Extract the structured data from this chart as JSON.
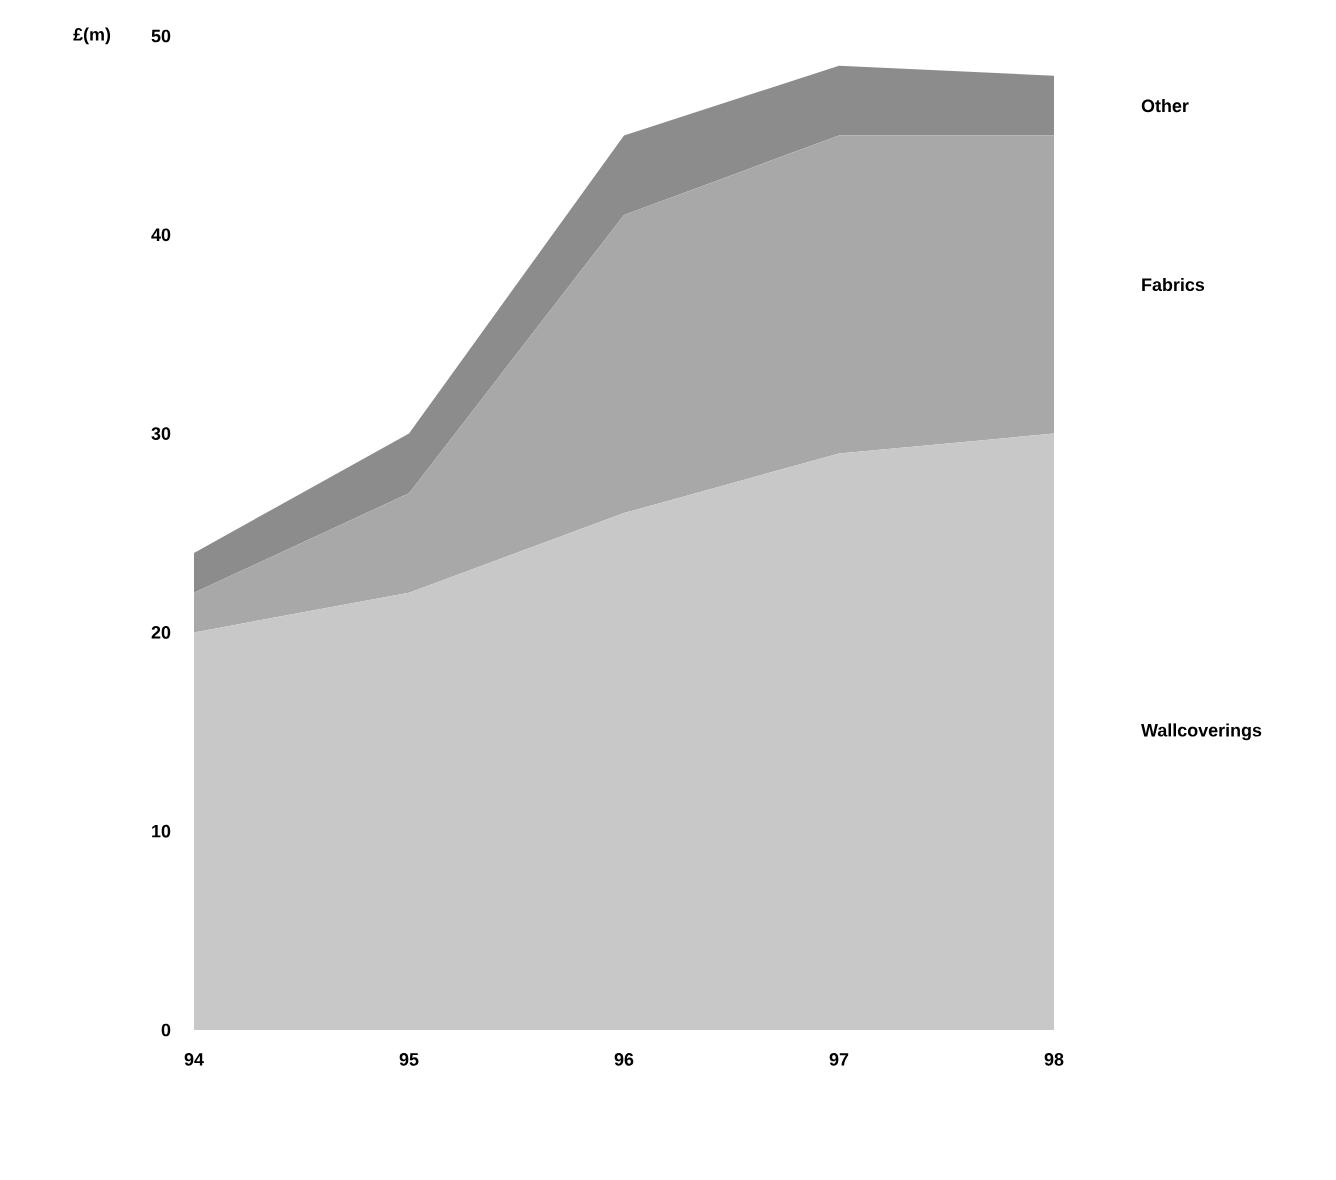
{
  "chart_data": {
    "type": "area",
    "stacked": true,
    "ylabel": "£(m)",
    "x": [
      94,
      95,
      96,
      97,
      98
    ],
    "series": [
      {
        "name": "Wallcoverings",
        "color": "#c8c8c8",
        "values": [
          20,
          22,
          26,
          29,
          30
        ]
      },
      {
        "name": "Fabrics",
        "color": "#a8a8a8",
        "values": [
          2,
          5,
          15,
          16,
          15
        ]
      },
      {
        "name": "Other",
        "color": "#8c8c8c",
        "values": [
          2,
          3,
          4,
          3.5,
          3
        ]
      }
    ],
    "xlim": [
      94,
      98
    ],
    "ylim": [
      0,
      50
    ],
    "xticks": [
      94,
      95,
      96,
      97,
      98
    ],
    "yticks": [
      0,
      10,
      20,
      30,
      40,
      50
    ],
    "grid": false,
    "legend": false
  }
}
